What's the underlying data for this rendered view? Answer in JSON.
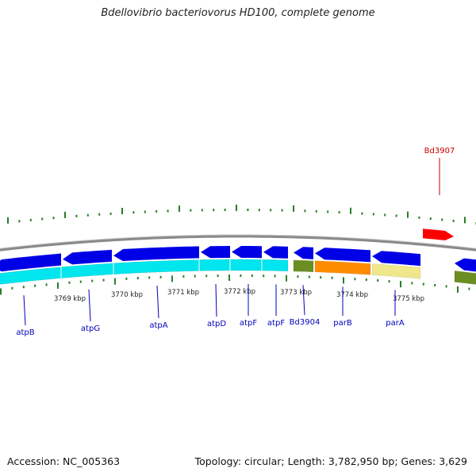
{
  "title": "Bdellovibrio bacteriovorus HD100, complete genome",
  "footer": {
    "accession": "Accession: NC_005363",
    "topology": "Topology: circular; Length: 3,782,950 bp; Genes: 3,629"
  },
  "colors": {
    "backbone": "#8a8a8a",
    "forward_gene": "#ff0000",
    "reverse_gene": "#0000e6",
    "ticks": "#2a7d2a",
    "axis_label_text": "#222222",
    "gene_label_forward": "#cc0000",
    "gene_label_reverse": "#0000bb",
    "operon_atp": "#00e5ee",
    "operon_dark": "#6b8e23",
    "operon_orange": "#ff8c00",
    "operon_khaki": "#f0e68c"
  },
  "axis": {
    "unit": "kbp",
    "tick_labels": [
      "3769 kbp",
      "3770 kbp",
      "3771 kbp",
      "3772 kbp",
      "3773 kbp",
      "3774 kbp",
      "3775 kbp"
    ]
  },
  "forward_genes": [
    {
      "label": "Bd3907",
      "icon": "arrow-right"
    }
  ],
  "reverse_genes": [
    {
      "label": "atpB",
      "icon": "arrow-left"
    },
    {
      "label": "atpG",
      "icon": "arrow-left"
    },
    {
      "label": "atpA",
      "icon": "arrow-left"
    },
    {
      "label": "atpD",
      "icon": "arrow-left"
    },
    {
      "label": "atpF",
      "icon": "arrow-left"
    },
    {
      "label": "atpF",
      "icon": "arrow-left"
    },
    {
      "label": "Bd3904",
      "icon": "arrow-left"
    },
    {
      "label": "parB",
      "icon": "arrow-left"
    },
    {
      "label": "parA",
      "icon": "arrow-left"
    },
    {
      "label": "",
      "icon": "arrow-left"
    }
  ],
  "operon_track": [
    {
      "color": "#00e5ee"
    },
    {
      "color": "#6b8e23"
    },
    {
      "color": "#ff8c00"
    },
    {
      "color": "#f0e68c"
    },
    {
      "color": "#6b8e23"
    }
  ]
}
